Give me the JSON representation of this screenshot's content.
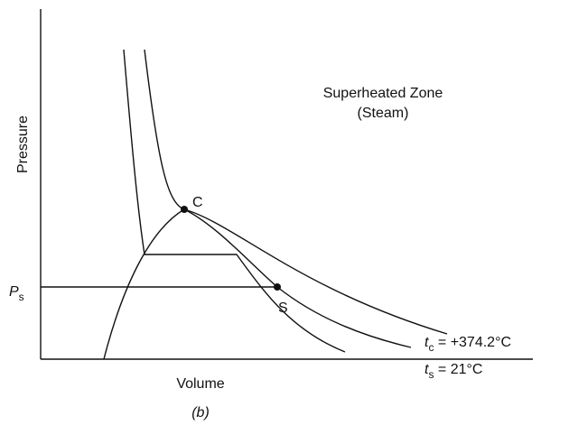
{
  "zone_label": {
    "line1": "Superheated Zone",
    "line2": "(Steam)"
  },
  "axes": {
    "y_label": "Pressure",
    "x_label": "Volume"
  },
  "caption": "(b)",
  "points": {
    "critical": "C",
    "saturation": "S"
  },
  "pressure_label": {
    "symbol": "P",
    "subscript": "s"
  },
  "isotherms": [
    {
      "symbol": "t",
      "subscript": "c",
      "text": " = +374.2°C"
    },
    {
      "symbol": "t",
      "subscript": "s",
      "text": " = 21°C"
    }
  ]
}
